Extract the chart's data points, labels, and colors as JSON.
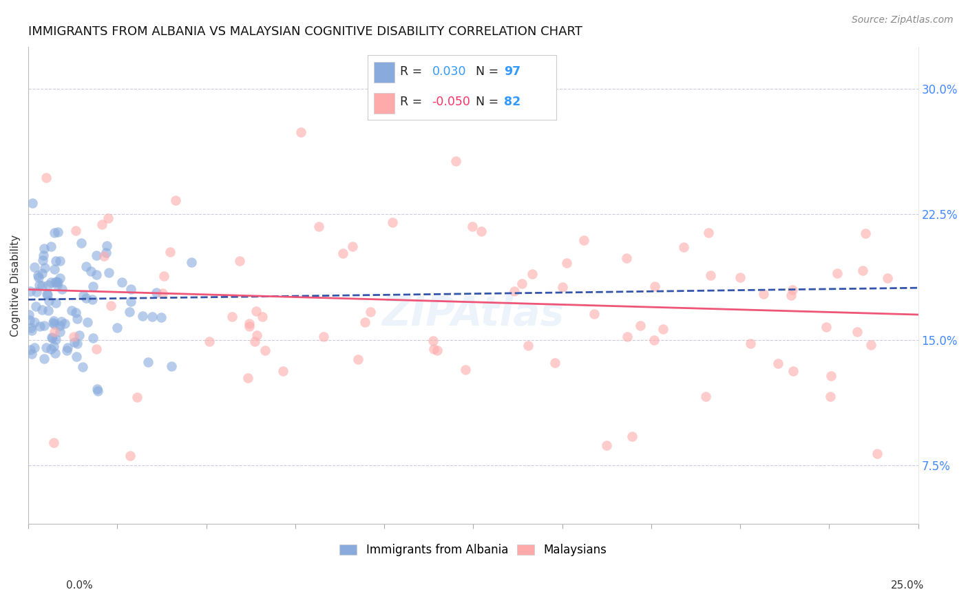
{
  "title": "IMMIGRANTS FROM ALBANIA VS MALAYSIAN COGNITIVE DISABILITY CORRELATION CHART",
  "source": "Source: ZipAtlas.com",
  "ylabel": "Cognitive Disability",
  "label1": "Immigrants from Albania",
  "label2": "Malaysians",
  "blue_color": "#88AADD",
  "pink_color": "#FFAAAA",
  "blue_line_color": "#3355AA",
  "pink_line_color": "#EE5577",
  "blue_r_color": "#3399FF",
  "pink_r_color": "#FF3366",
  "n_color": "#3399FF",
  "r_label_color": "#000000",
  "right_axis_color": "#4488FF",
  "grid_color": "#CCCCDD",
  "title_fontsize": 13,
  "source_fontsize": 10,
  "right_ytick_vals": [
    0.075,
    0.15,
    0.225,
    0.3
  ],
  "right_ytick_labels": [
    "7.5%",
    "15.0%",
    "22.5%",
    "30.0%"
  ],
  "xmin": 0.0,
  "xmax": 0.25,
  "ymin": 0.04,
  "ymax": 0.325
}
